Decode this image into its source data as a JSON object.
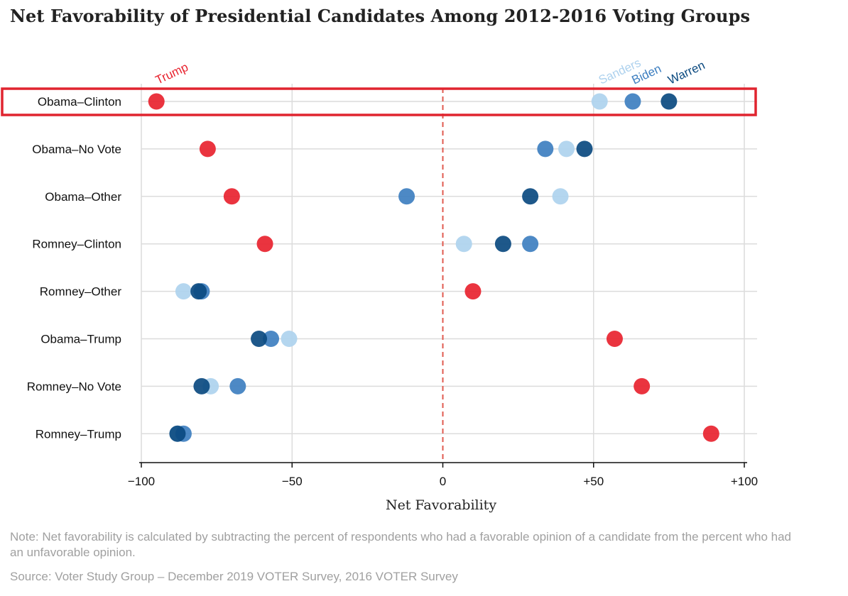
{
  "title": "Net Favorability of Presidential Candidates Among 2012-2016 Voting Groups",
  "note": "Note: Net favorability is calculated by subtracting the percent of respondents who had a favorable opinion of a candidate from the percent who had an unfavorable opinion.",
  "source": "Source: Voter Study Group – December 2019 VOTER Survey, 2016 VOTER Survey",
  "chart_data": {
    "type": "scatter",
    "title": "Net Favorability of Presidential Candidates Among 2012-2016 Voting Groups",
    "xlabel": "Net Favorability",
    "ylabel": "",
    "xlim": [
      -100,
      100
    ],
    "x_ticks": [
      -100,
      -50,
      0,
      50,
      100
    ],
    "x_tick_labels": [
      "−100",
      "−50",
      "0",
      "+50",
      "+100"
    ],
    "reference_line": {
      "x": 0,
      "style": "dashed",
      "color": "#e05a4f"
    },
    "grid": true,
    "categories": [
      "Obama–Clinton",
      "Obama–No Vote",
      "Obama–Other",
      "Romney–Clinton",
      "Romney–Other",
      "Obama–Trump",
      "Romney–No Vote",
      "Romney–Trump"
    ],
    "highlighted_category": "Obama–Clinton",
    "highlight_color": "#e0242f",
    "series": [
      {
        "name": "Trump",
        "color": "#e8232f",
        "values": [
          -95,
          -78,
          -70,
          -59,
          10,
          57,
          66,
          89
        ]
      },
      {
        "name": "Sanders",
        "color": "#aed2ee",
        "values": [
          52,
          41,
          39,
          7,
          -86,
          -51,
          -77,
          -88
        ]
      },
      {
        "name": "Biden",
        "color": "#3e7fc0",
        "values": [
          63,
          34,
          -12,
          29,
          -80,
          -57,
          -68,
          -86
        ]
      },
      {
        "name": "Warren",
        "color": "#0b4a80",
        "values": [
          75,
          47,
          29,
          20,
          -81,
          -61,
          -80,
          -88
        ]
      }
    ],
    "legend_placement": "top, labels rotated above first row"
  }
}
